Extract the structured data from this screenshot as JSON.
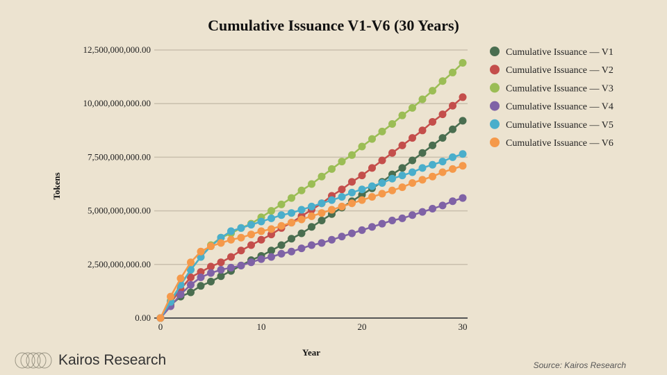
{
  "chart_data": {
    "type": "line",
    "title": "Cumulative Issuance V1-V6 (30 Years)",
    "xlabel": "Year",
    "ylabel": "Tokens",
    "xlim": [
      0,
      30
    ],
    "ylim": [
      0,
      12500000000
    ],
    "xticks": [
      0,
      10,
      20,
      30
    ],
    "yticks": [
      0,
      2500000000,
      5000000000,
      7500000000,
      10000000000,
      12500000000
    ],
    "ytick_labels": [
      "0.00",
      "2,500,000,000.00",
      "5,000,000,000.00",
      "7,500,000,000.00",
      "10,000,000,000.00",
      "12,500,000,000.00"
    ],
    "grid": "horizontal",
    "legend": "right",
    "x": [
      0,
      1,
      2,
      3,
      4,
      5,
      6,
      7,
      8,
      9,
      10,
      11,
      12,
      13,
      14,
      15,
      16,
      17,
      18,
      19,
      20,
      21,
      22,
      23,
      24,
      25,
      26,
      27,
      28,
      29,
      30
    ],
    "series": [
      {
        "name": "Cumulative Issuance — V1",
        "color": "#4a6e50",
        "values_billions": [
          0,
          0.6,
          1.0,
          1.2,
          1.5,
          1.7,
          1.95,
          2.2,
          2.45,
          2.7,
          2.9,
          3.15,
          3.4,
          3.7,
          3.95,
          4.25,
          4.55,
          4.85,
          5.15,
          5.45,
          5.75,
          6.05,
          6.35,
          6.7,
          7.0,
          7.35,
          7.7,
          8.05,
          8.4,
          8.8,
          9.2
        ]
      },
      {
        "name": "Cumulative Issuance — V2",
        "color": "#c44e4b",
        "values_billions": [
          0,
          0.7,
          1.35,
          1.9,
          2.15,
          2.4,
          2.6,
          2.85,
          3.15,
          3.4,
          3.65,
          3.9,
          4.2,
          4.45,
          4.75,
          5.05,
          5.35,
          5.7,
          6.0,
          6.35,
          6.65,
          7.0,
          7.35,
          7.7,
          8.05,
          8.4,
          8.75,
          9.15,
          9.5,
          9.9,
          10.3
        ]
      },
      {
        "name": "Cumulative Issuance — V3",
        "color": "#9bbd55",
        "values_billions": [
          0,
          0.8,
          1.55,
          2.25,
          2.85,
          3.4,
          3.75,
          3.95,
          4.2,
          4.4,
          4.7,
          5.0,
          5.3,
          5.6,
          5.95,
          6.25,
          6.6,
          6.95,
          7.3,
          7.6,
          8.0,
          8.35,
          8.7,
          9.05,
          9.45,
          9.8,
          10.2,
          10.6,
          11.05,
          11.45,
          11.9
        ]
      },
      {
        "name": "Cumulative Issuance — V4",
        "color": "#7f62a6",
        "values_billions": [
          0,
          0.55,
          1.1,
          1.55,
          1.9,
          2.1,
          2.25,
          2.35,
          2.45,
          2.6,
          2.75,
          2.85,
          3.0,
          3.1,
          3.25,
          3.4,
          3.5,
          3.65,
          3.8,
          3.95,
          4.1,
          4.25,
          4.4,
          4.55,
          4.65,
          4.8,
          4.95,
          5.1,
          5.25,
          5.45,
          5.6
        ]
      },
      {
        "name": "Cumulative Issuance — V5",
        "color": "#4aaecb",
        "values_billions": [
          0,
          0.75,
          1.55,
          2.25,
          2.85,
          3.35,
          3.75,
          4.05,
          4.2,
          4.35,
          4.5,
          4.65,
          4.8,
          4.9,
          5.05,
          5.2,
          5.35,
          5.5,
          5.65,
          5.85,
          6.0,
          6.15,
          6.3,
          6.5,
          6.65,
          6.8,
          7.0,
          7.15,
          7.3,
          7.5,
          7.65
        ]
      },
      {
        "name": "Cumulative Issuance — V6",
        "color": "#f5994a",
        "values_billions": [
          0,
          1.0,
          1.85,
          2.6,
          3.1,
          3.35,
          3.5,
          3.65,
          3.75,
          3.9,
          4.05,
          4.15,
          4.3,
          4.45,
          4.6,
          4.75,
          4.9,
          5.05,
          5.2,
          5.35,
          5.5,
          5.65,
          5.8,
          5.95,
          6.1,
          6.3,
          6.45,
          6.6,
          6.8,
          6.95,
          7.1
        ]
      }
    ]
  },
  "branding": {
    "logo_text": "Kairos Research",
    "source": "Source: Kairos Research"
  },
  "colors": {
    "background": "#ece3d0",
    "grid": "#c9bfad"
  }
}
